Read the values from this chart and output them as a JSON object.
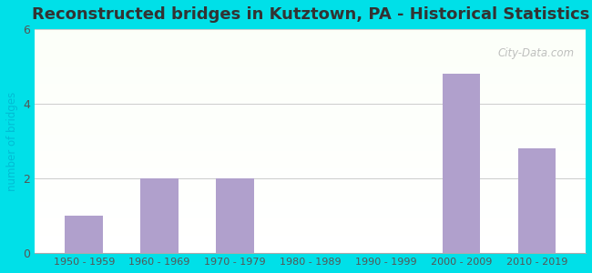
{
  "title": "Reconstructed bridges in Kutztown, PA - Historical Statistics",
  "categories": [
    "1950 - 1959",
    "1960 - 1969",
    "1970 - 1979",
    "1980 - 1989",
    "1990 - 1999",
    "2000 - 2009",
    "2010 - 2019"
  ],
  "values": [
    1,
    2,
    2,
    0,
    0,
    4.8,
    2.8
  ],
  "bar_color": "#b0a0cc",
  "ylabel": "number of bridges",
  "ylim": [
    0,
    6
  ],
  "yticks": [
    0,
    2,
    4,
    6
  ],
  "background_outer": "#00e0e8",
  "title_fontsize": 13,
  "title_color": "#333333",
  "tick_label_color": "#555555",
  "axis_label_color": "#00bcd4",
  "watermark_text": "City-Data.com",
  "grid_color": "#cccccc",
  "xlabel_fontsize": 8,
  "ylabel_fontsize": 8.5
}
